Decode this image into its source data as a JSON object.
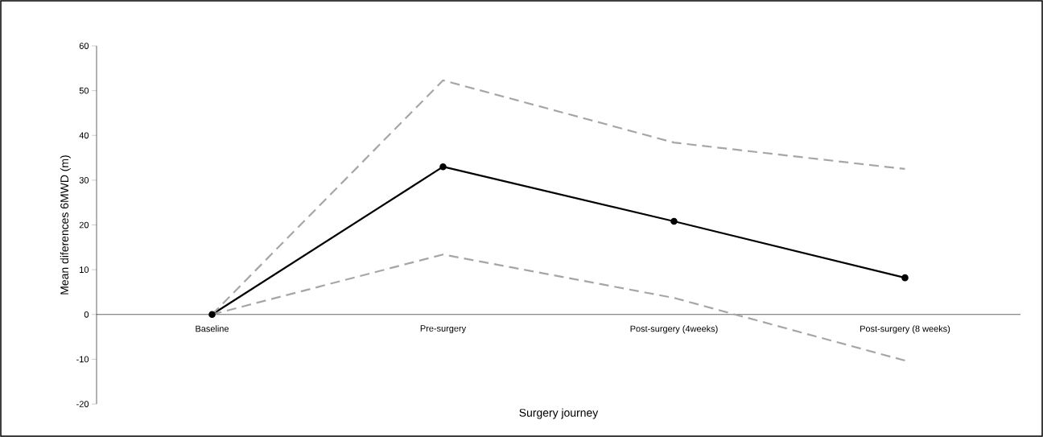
{
  "chart_data": {
    "type": "line",
    "xlabel": "Surgery journey",
    "ylabel": "Mean diferences 6MWD (m)",
    "categories": [
      "Baseline",
      "Pre-surgery",
      "Post-surgery (4weeks)",
      "Post-surgery (8 weeks)"
    ],
    "series": [
      {
        "color": "#000000",
        "values": [
          0,
          33,
          20.8,
          8.2
        ],
        "marker": "circle",
        "line_style": "solid"
      },
      {
        "color": "#a6a6a6",
        "values": [
          0,
          52.3,
          38.4,
          32.5
        ],
        "marker": "none",
        "line_style": "dashed"
      },
      {
        "color": "#a6a6a6",
        "values": [
          0,
          13.4,
          3.7,
          -10.3
        ],
        "marker": "none",
        "line_style": "dashed"
      }
    ],
    "ylim": [
      -20,
      60
    ],
    "yticks": [
      -20,
      -10,
      0,
      10,
      20,
      30,
      40,
      50,
      60
    ],
    "grid": false
  }
}
